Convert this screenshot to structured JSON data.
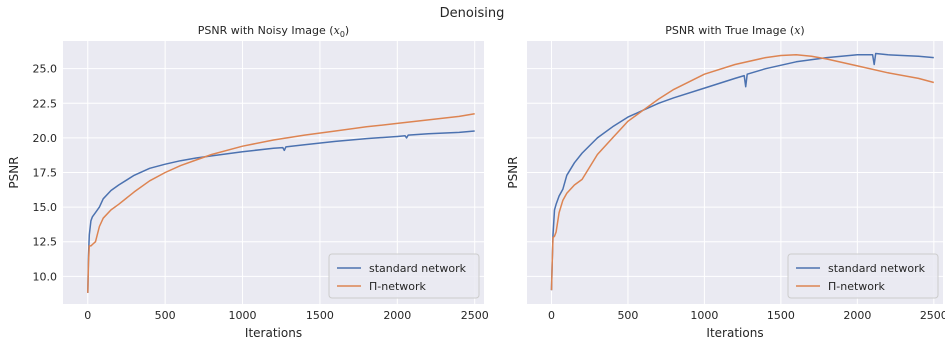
{
  "figure_title": "Denoising",
  "chart_data": [
    {
      "type": "line",
      "title": "PSNR with Noisy Image (",
      "title_math": "x",
      "title_sub": "0",
      "title_end": ")",
      "xlabel": "Iterations",
      "ylabel": "PSNR",
      "xlim": [
        -160,
        2560
      ],
      "ylim": [
        8.0,
        27.0
      ],
      "xticks": [
        0,
        500,
        1000,
        1500,
        2000,
        2500
      ],
      "yticks": [
        10.0,
        12.5,
        15.0,
        17.5,
        20.0,
        22.5,
        25.0
      ],
      "ytick_labels": [
        "10.0",
        "12.5",
        "15.0",
        "17.5",
        "20.0",
        "22.5",
        "25.0"
      ],
      "grid": true,
      "legend_position": "lower-right",
      "series": [
        {
          "name": "standard network",
          "color": "#4c72b0",
          "x": [
            0,
            5,
            10,
            20,
            30,
            50,
            75,
            100,
            150,
            200,
            300,
            400,
            500,
            600,
            700,
            800,
            1000,
            1200,
            1260,
            1270,
            1280,
            1400,
            1600,
            1800,
            2000,
            2050,
            2060,
            2070,
            2200,
            2400,
            2500
          ],
          "y": [
            8.8,
            11.5,
            13.0,
            14.0,
            14.3,
            14.6,
            15.0,
            15.6,
            16.2,
            16.6,
            17.3,
            17.8,
            18.1,
            18.35,
            18.55,
            18.7,
            19.0,
            19.25,
            19.3,
            19.1,
            19.35,
            19.5,
            19.75,
            19.95,
            20.1,
            20.15,
            20.0,
            20.2,
            20.3,
            20.4,
            20.5
          ]
        },
        {
          "name": "Π-network",
          "color": "#dd8452",
          "x": [
            0,
            5,
            10,
            20,
            30,
            50,
            75,
            100,
            150,
            200,
            300,
            400,
            500,
            600,
            700,
            800,
            1000,
            1200,
            1400,
            1600,
            1800,
            2000,
            2200,
            2400,
            2500
          ],
          "y": [
            8.8,
            11.0,
            12.2,
            12.2,
            12.3,
            12.5,
            13.6,
            14.2,
            14.8,
            15.2,
            16.1,
            16.9,
            17.5,
            18.0,
            18.4,
            18.8,
            19.4,
            19.85,
            20.2,
            20.5,
            20.8,
            21.05,
            21.3,
            21.55,
            21.75
          ]
        }
      ]
    },
    {
      "type": "line",
      "title": "PSNR with True Image (",
      "title_math": "x",
      "title_sub": "",
      "title_end": ")",
      "xlabel": "Iterations",
      "ylabel": "PSNR",
      "xlim": [
        -160,
        2560
      ],
      "ylim": [
        8.0,
        27.0
      ],
      "xticks": [
        0,
        500,
        1000,
        1500,
        2000,
        2500
      ],
      "grid": true,
      "legend_position": "lower-right",
      "series": [
        {
          "name": "standard network",
          "color": "#4c72b0",
          "x": [
            0,
            5,
            10,
            20,
            30,
            50,
            75,
            100,
            150,
            200,
            300,
            400,
            500,
            600,
            700,
            800,
            1000,
            1200,
            1260,
            1270,
            1280,
            1400,
            1600,
            1800,
            2000,
            2100,
            2110,
            2120,
            2200,
            2400,
            2500
          ],
          "y": [
            9.0,
            11.0,
            13.0,
            14.8,
            15.2,
            15.8,
            16.3,
            17.3,
            18.2,
            18.9,
            20.0,
            20.8,
            21.5,
            22.0,
            22.5,
            22.9,
            23.6,
            24.3,
            24.5,
            23.7,
            24.6,
            25.0,
            25.5,
            25.8,
            26.0,
            26.0,
            25.3,
            26.1,
            26.0,
            25.9,
            25.8
          ]
        },
        {
          "name": "Π-network",
          "color": "#dd8452",
          "x": [
            0,
            5,
            10,
            20,
            30,
            50,
            75,
            100,
            150,
            200,
            300,
            400,
            500,
            600,
            700,
            800,
            1000,
            1200,
            1400,
            1500,
            1600,
            1700,
            1800,
            2000,
            2200,
            2400,
            2500
          ],
          "y": [
            9.0,
            11.0,
            12.8,
            12.9,
            13.2,
            14.6,
            15.5,
            16.0,
            16.6,
            17.0,
            18.8,
            20.0,
            21.2,
            22.0,
            22.8,
            23.5,
            24.6,
            25.3,
            25.8,
            25.95,
            26.0,
            25.9,
            25.7,
            25.2,
            24.7,
            24.3,
            24.0
          ]
        }
      ]
    }
  ]
}
